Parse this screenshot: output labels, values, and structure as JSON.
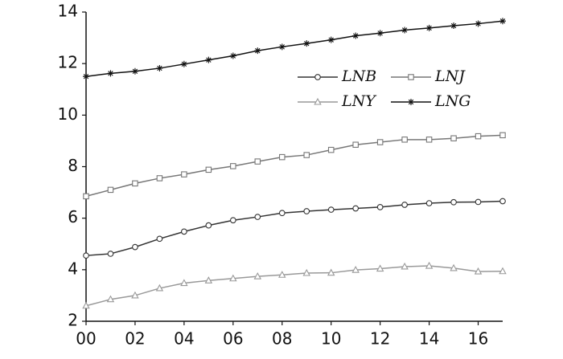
{
  "chart_data": {
    "type": "line",
    "x": [
      0,
      1,
      2,
      3,
      4,
      5,
      6,
      7,
      8,
      9,
      10,
      11,
      12,
      13,
      14,
      15,
      16,
      17
    ],
    "xlim": [
      0,
      17
    ],
    "xticks": [
      {
        "value": 0,
        "label": "00"
      },
      {
        "value": 2,
        "label": "02"
      },
      {
        "value": 4,
        "label": "04"
      },
      {
        "value": 6,
        "label": "06"
      },
      {
        "value": 8,
        "label": "08"
      },
      {
        "value": 10,
        "label": "10"
      },
      {
        "value": 12,
        "label": "12"
      },
      {
        "value": 14,
        "label": "14"
      },
      {
        "value": 16,
        "label": "16"
      }
    ],
    "ylim": [
      2,
      14
    ],
    "yticks": [
      2,
      4,
      6,
      8,
      10,
      12,
      14
    ],
    "grid": false,
    "legend": "upper right",
    "series": [
      {
        "name": "LNB",
        "color": "#333333",
        "marker": "circle",
        "values": [
          4.55,
          4.62,
          4.88,
          5.2,
          5.48,
          5.72,
          5.92,
          6.05,
          6.2,
          6.27,
          6.33,
          6.38,
          6.43,
          6.52,
          6.58,
          6.62,
          6.63,
          6.66
        ]
      },
      {
        "name": "LNJ",
        "color": "#777777",
        "marker": "square",
        "values": [
          6.85,
          7.1,
          7.35,
          7.55,
          7.7,
          7.88,
          8.02,
          8.2,
          8.37,
          8.45,
          8.65,
          8.85,
          8.95,
          9.05,
          9.05,
          9.1,
          9.18,
          9.22
        ]
      },
      {
        "name": "LNY",
        "color": "#999999",
        "marker": "triangle",
        "values": [
          2.6,
          2.85,
          3.0,
          3.28,
          3.48,
          3.58,
          3.66,
          3.74,
          3.8,
          3.87,
          3.88,
          3.99,
          4.04,
          4.12,
          4.15,
          4.06,
          3.93,
          3.94
        ]
      },
      {
        "name": "LNG",
        "color": "#111111",
        "marker": "asterisk",
        "values": [
          11.5,
          11.62,
          11.7,
          11.82,
          11.98,
          12.14,
          12.3,
          12.5,
          12.65,
          12.78,
          12.92,
          13.08,
          13.18,
          13.3,
          13.38,
          13.47,
          13.55,
          13.65
        ]
      }
    ]
  }
}
